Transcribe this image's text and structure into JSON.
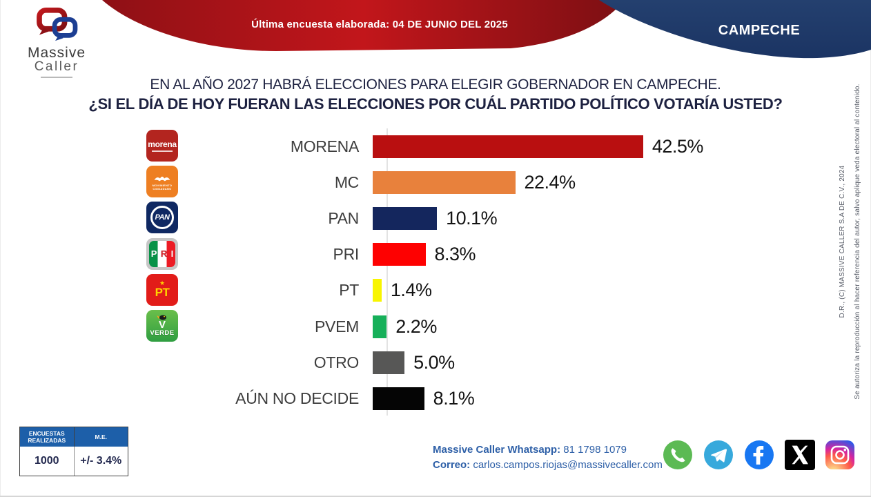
{
  "header": {
    "brand": {
      "word1": "Massive",
      "word2": "Caller"
    },
    "banner_label": "Última encuesta elaborada:",
    "banner_date": "04 DE JUNIO DEL 2025",
    "state_label": "CAMPECHE",
    "banner_red": "#a91318",
    "banner_blue": "#1e3a6b"
  },
  "title": {
    "line1": "EN AL AÑO 2027 HABRÁ ELECCIONES PARA ELEGIR GOBERNADOR EN CAMPECHE.",
    "line2": "¿SI EL DÍA DE HOY FUERAN LAS ELECCIONES POR CUÁL PARTIDO POLÍTICO VOTARÍA USTED?"
  },
  "chart_data": {
    "type": "bar",
    "orientation": "horizontal",
    "categories": [
      "MORENA",
      "MC",
      "PAN",
      "PRI",
      "PT",
      "PVEM",
      "OTRO",
      "AÚN NO DECIDE"
    ],
    "values": [
      42.5,
      22.4,
      10.1,
      8.3,
      1.4,
      2.2,
      5.0,
      8.1
    ],
    "labels": [
      "42.5%",
      "22.4%",
      "10.1%",
      "8.3%",
      "1.4%",
      "2.2%",
      "5.0%",
      "8.1%"
    ],
    "colors": [
      "#b90f10",
      "#e8813c",
      "#14265d",
      "#fe0101",
      "#f8f500",
      "#17b05a",
      "#575756",
      "#050505"
    ],
    "xlim": [
      0,
      45
    ],
    "grid": false,
    "legend": false
  },
  "party_logos": {
    "morena": {
      "text": "morena"
    },
    "mc": {
      "line1": "MOVIMIENTO",
      "line2": "CIUDADANO"
    },
    "pan": {
      "text": "PAN"
    },
    "pri": {
      "l1": "P",
      "l2": "R",
      "l3": "I"
    },
    "pt": {
      "text": "PT"
    },
    "verde": {
      "v": "V",
      "text": "VERDE"
    }
  },
  "stats_table": {
    "headers": [
      "ENCUESTAS REALIZADAS",
      "M.E."
    ],
    "values": [
      "1000",
      "+/- 3.4%"
    ],
    "header_color": "#1d5fa9"
  },
  "contact": {
    "whatsapp_label": "Massive Caller Whatsapp:",
    "whatsapp_number": " 81 1798 1079",
    "email_label": "Correo:",
    "email": " carlos.campos.riojas@massivecaller.com",
    "text_color": "#2d5fa7"
  },
  "social": {
    "icons": [
      "whatsapp-icon",
      "telegram-icon",
      "facebook-icon",
      "x-icon",
      "instagram-icon"
    ]
  },
  "copyright": {
    "line1": "D.R., (C) MASSIVE CALLER S.A DE C.V., 2024",
    "line2": "Se autoriza la reproducción al hacer referencia del autor, salvo aplique veda electoral al contenido."
  }
}
